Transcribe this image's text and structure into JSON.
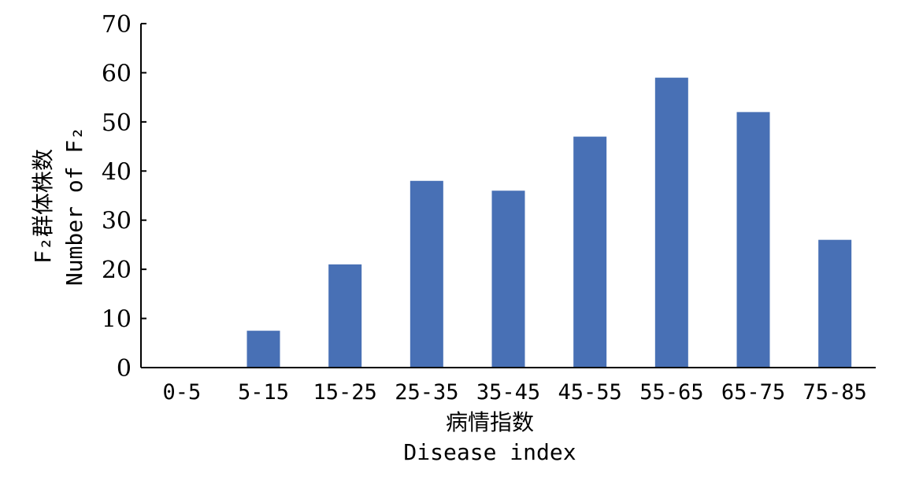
{
  "chart_data": {
    "type": "bar",
    "categories": [
      "0-5",
      "5-15",
      "15-25",
      "25-35",
      "35-45",
      "45-55",
      "55-65",
      "65-75",
      "75-85"
    ],
    "values": [
      0,
      7.5,
      21,
      38,
      36,
      47,
      59,
      52,
      26
    ],
    "ylim": [
      0,
      70
    ],
    "yticks": [
      0,
      10,
      20,
      30,
      40,
      50,
      60,
      70
    ],
    "xlabel_cn": "病情指数",
    "xlabel_en": "Disease index",
    "ylabel_cn": "F₂群体株数",
    "ylabel_en": "Number of F₂",
    "bar_color": "#4870b5",
    "grid": false,
    "legend": "none"
  }
}
